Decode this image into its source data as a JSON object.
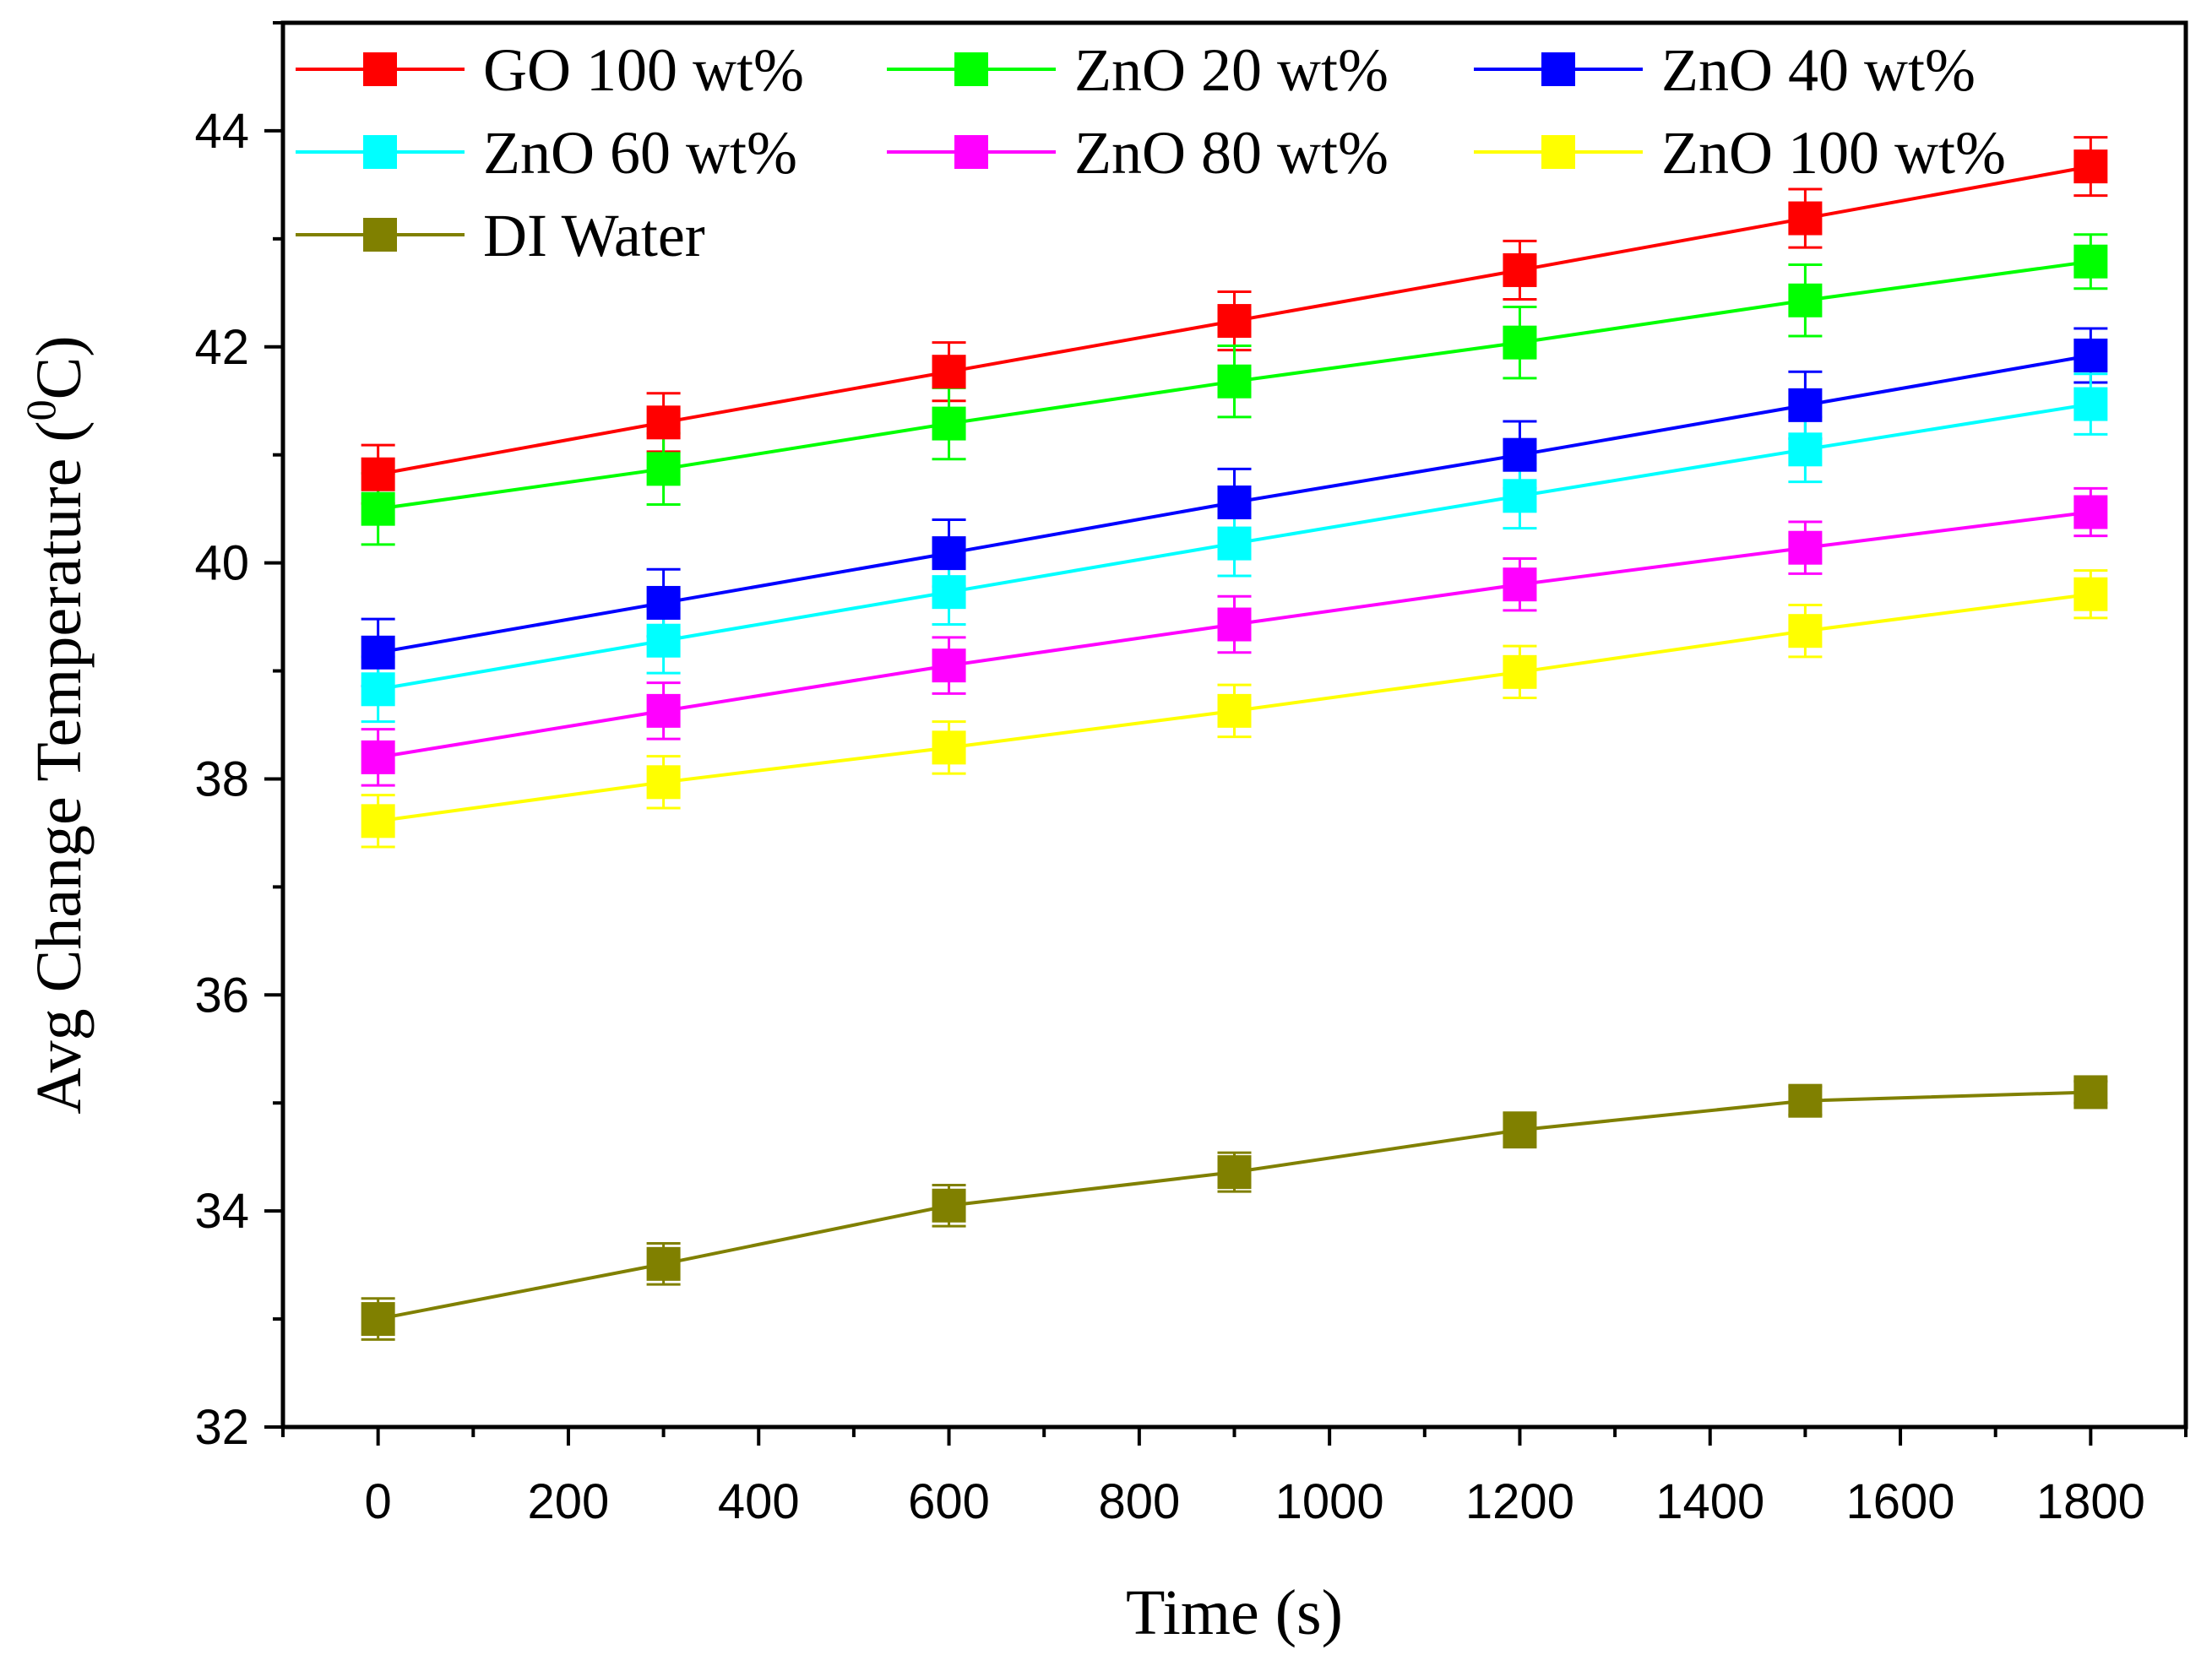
{
  "chart_data": {
    "type": "line",
    "xlabel": "Time (s)",
    "ylabel": "Avg Change Temperature (",
    "ylabel_sup": "0",
    "ylabel_end": "C)",
    "xlim": [
      -100,
      1900
    ],
    "ylim": [
      32,
      45
    ],
    "x_ticks": [
      0,
      200,
      400,
      600,
      800,
      1000,
      1200,
      1400,
      1600,
      1800
    ],
    "y_ticks": [
      32,
      34,
      36,
      38,
      40,
      42,
      44
    ],
    "x": [
      0,
      300,
      600,
      900,
      1200,
      1500,
      1800
    ],
    "legend_placement": "top",
    "marker": "square",
    "error_bars": true,
    "series": [
      {
        "name": "GO 100 wt%",
        "color": "#ff0000",
        "values": [
          40.82,
          41.3,
          41.77,
          42.24,
          42.71,
          43.19,
          43.67
        ],
        "errors": [
          0.27,
          0.27,
          0.27,
          0.27,
          0.27,
          0.27,
          0.27
        ]
      },
      {
        "name": "ZnO 20 wt%",
        "color": "#00ff00",
        "values": [
          40.5,
          40.87,
          41.29,
          41.68,
          42.04,
          42.43,
          42.79
        ],
        "errors": [
          0.33,
          0.33,
          0.33,
          0.33,
          0.33,
          0.33,
          0.25
        ]
      },
      {
        "name": "ZnO 40 wt%",
        "color": "#0000ff",
        "values": [
          39.17,
          39.63,
          40.09,
          40.56,
          41.0,
          41.46,
          41.92
        ],
        "errors": [
          0.31,
          0.31,
          0.31,
          0.31,
          0.31,
          0.31,
          0.25
        ]
      },
      {
        "name": "ZnO 60 wt%",
        "color": "#00ffff",
        "values": [
          38.83,
          39.28,
          39.73,
          40.18,
          40.62,
          41.05,
          41.47
        ],
        "errors": [
          0.3,
          0.3,
          0.3,
          0.3,
          0.3,
          0.3,
          0.28
        ]
      },
      {
        "name": "ZnO 80 wt%",
        "color": "#ff00ff",
        "values": [
          38.2,
          38.63,
          39.05,
          39.43,
          39.8,
          40.14,
          40.47
        ],
        "errors": [
          0.26,
          0.26,
          0.26,
          0.26,
          0.24,
          0.24,
          0.22
        ]
      },
      {
        "name": "ZnO 100 wt%",
        "color": "#ffff00",
        "values": [
          37.61,
          37.97,
          38.29,
          38.63,
          38.99,
          39.37,
          39.71
        ],
        "errors": [
          0.24,
          0.24,
          0.24,
          0.24,
          0.24,
          0.24,
          0.22
        ]
      },
      {
        "name": "DI Water",
        "color": "#808000",
        "values": [
          33.0,
          33.51,
          34.05,
          34.36,
          34.75,
          35.02,
          35.1
        ],
        "errors": [
          0.19,
          0.19,
          0.19,
          0.18,
          0.16,
          0.13,
          0.1
        ]
      }
    ]
  }
}
